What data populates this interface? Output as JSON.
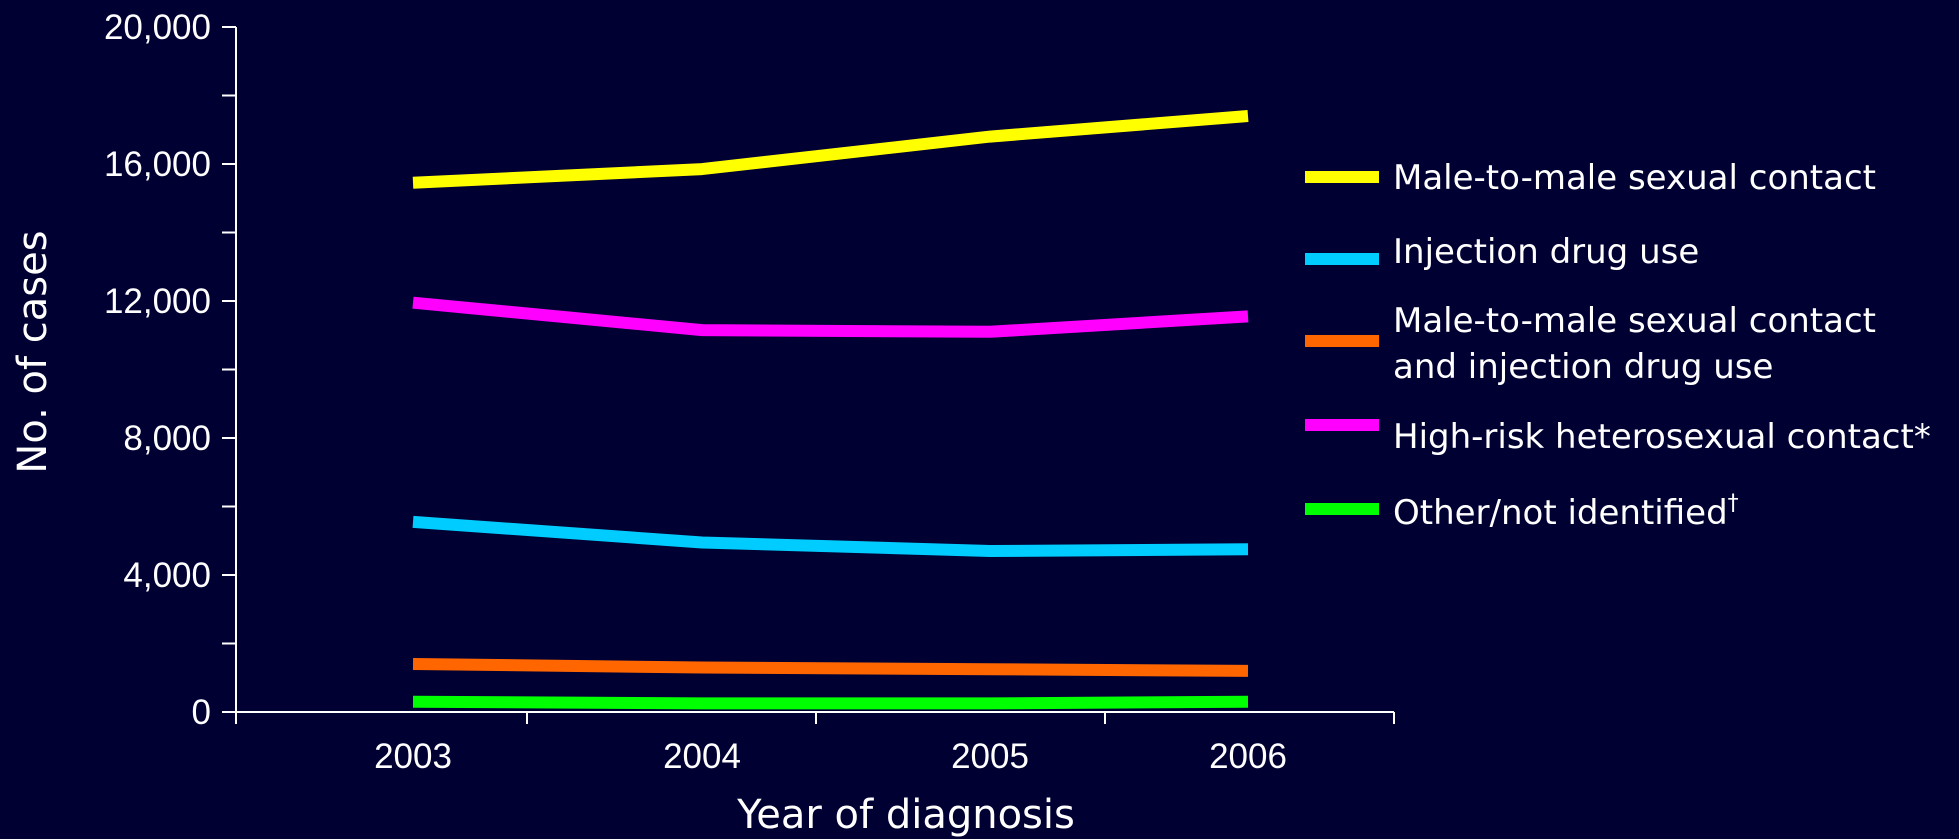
{
  "chart_data": {
    "type": "line",
    "xlabel": "Year of diagnosis",
    "ylabel": "No. of cases",
    "categories": [
      "2003",
      "2004",
      "2005",
      "2006"
    ],
    "ylim": [
      0,
      20000
    ],
    "yticks": [
      0,
      4000,
      8000,
      12000,
      16000,
      20000
    ],
    "ytick_labels": [
      "0",
      "4,000",
      "8,000",
      "12,000",
      "16,000",
      "20,000"
    ],
    "grid": false,
    "legend_position": "right",
    "series": [
      {
        "name": "Male-to-male sexual contact",
        "color": "#ffff00",
        "values": [
          15450,
          15850,
          16800,
          17400
        ]
      },
      {
        "name": "Injection drug use",
        "color": "#00ccff",
        "values": [
          5550,
          4950,
          4700,
          4750
        ]
      },
      {
        "name": "Male-to-male sexual contact and injection drug use",
        "name_lines": [
          "Male-to-male sexual contact",
          "and injection drug use"
        ],
        "color": "#ff6600",
        "values": [
          1400,
          1300,
          1250,
          1200
        ]
      },
      {
        "name": "High-risk heterosexual contact*",
        "color": "#ff00ff",
        "values": [
          11950,
          11150,
          11100,
          11550
        ]
      },
      {
        "name": "Other/not identified†",
        "name_main": "Other/not identified",
        "name_mark": "†",
        "color": "#00ff00",
        "values": [
          300,
          250,
          250,
          300
        ]
      }
    ]
  }
}
